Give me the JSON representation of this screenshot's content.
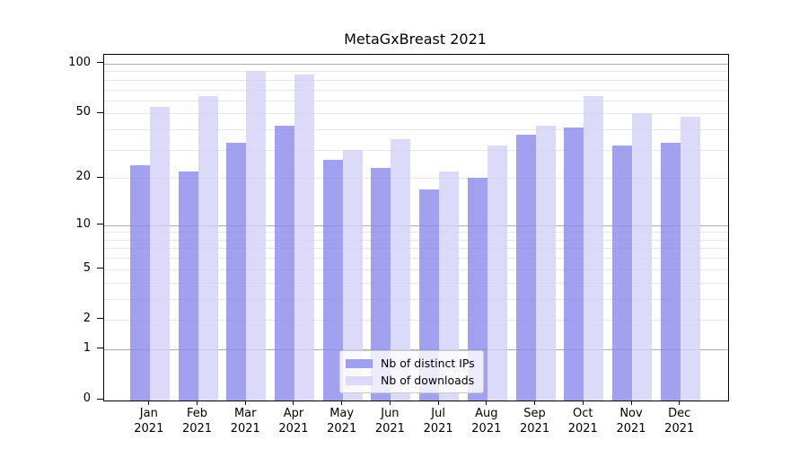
{
  "chart_data": {
    "type": "bar",
    "title": "MetaGxBreast 2021",
    "categories": [
      "Jan",
      "Feb",
      "Mar",
      "Apr",
      "May",
      "Jun",
      "Jul",
      "Aug",
      "Sep",
      "Oct",
      "Nov",
      "Dec"
    ],
    "x_sublabel": "2021",
    "series": [
      {
        "name": "Nb of distinct IPs",
        "color": "#8a8aec",
        "values": [
          24,
          22,
          33,
          42,
          26,
          23,
          17,
          20,
          37,
          41,
          32,
          33
        ]
      },
      {
        "name": "Nb of downloads",
        "color": "#d2d2f7",
        "values": [
          55,
          64,
          91,
          86,
          30,
          35,
          22,
          32,
          42,
          64,
          50,
          48
        ]
      }
    ],
    "bar_alpha": 0.8,
    "y_scale": "log10(value+1)",
    "y_ticks": [
      0,
      1,
      2,
      5,
      10,
      20,
      50,
      100
    ],
    "ylim": [
      0,
      115
    ],
    "grid": true,
    "grid_major_values": [
      1,
      10,
      100
    ],
    "grid_minor_values": [
      2,
      3,
      4,
      5,
      6,
      7,
      8,
      9,
      20,
      30,
      40,
      50,
      60,
      70,
      80,
      90
    ],
    "grid_major_color": "#ababab",
    "grid_minor_color": "#e7e7e7",
    "legend_position": "lower-center"
  }
}
